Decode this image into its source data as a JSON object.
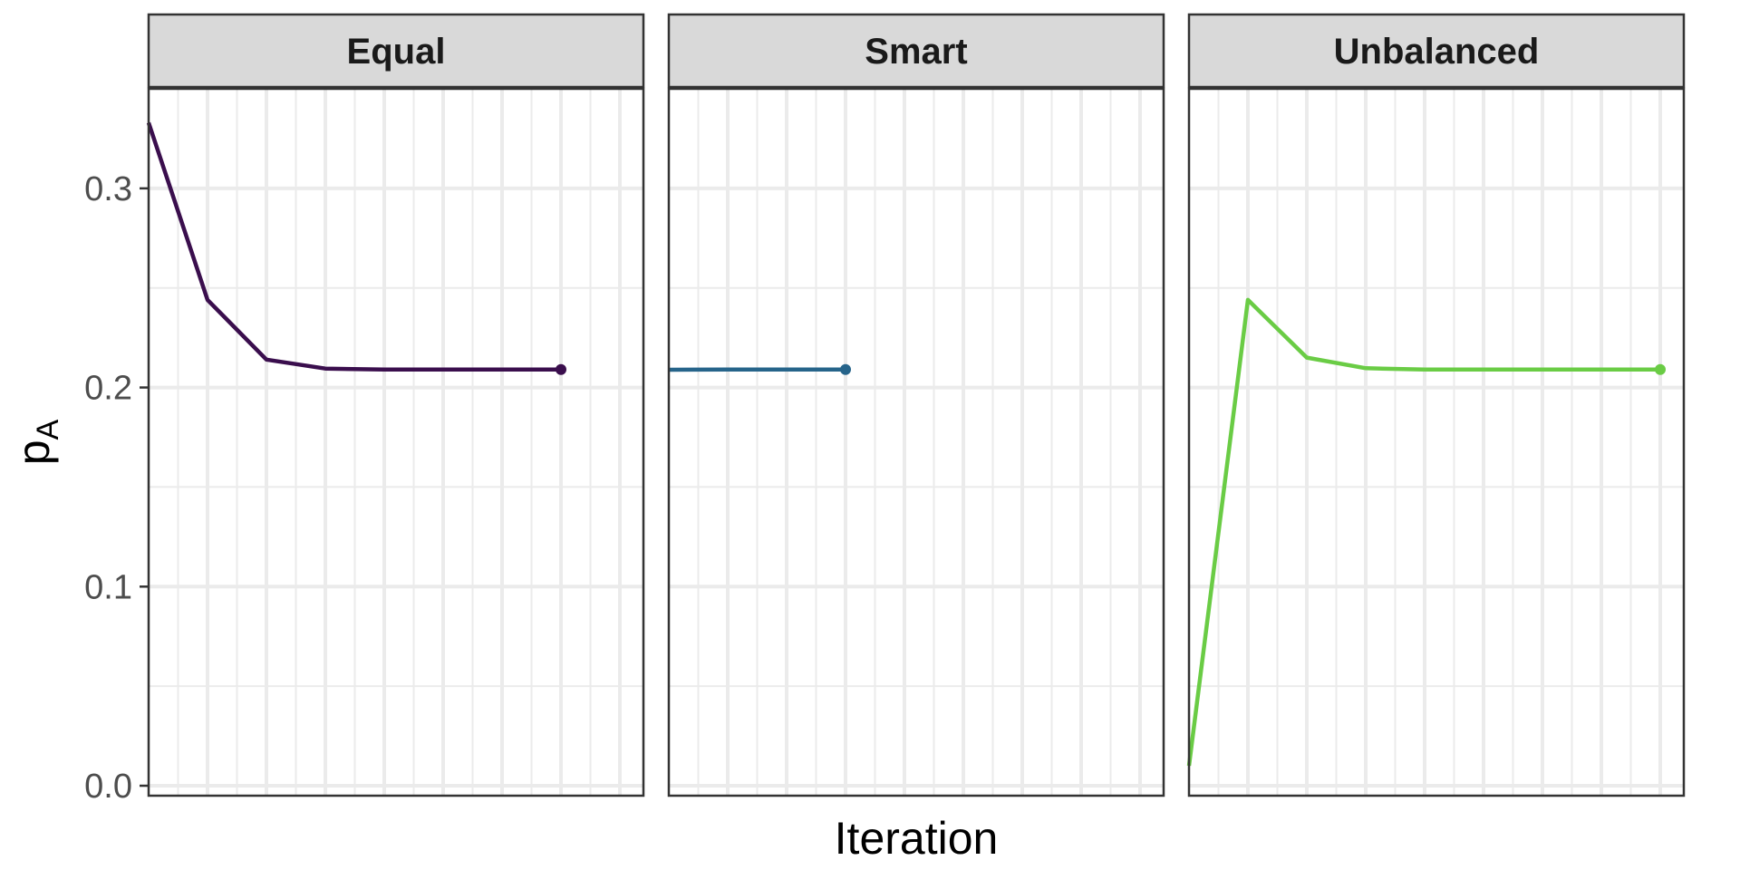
{
  "chart_data": {
    "type": "line",
    "facet": "panels",
    "xlabel": "Iteration",
    "ylabel": {
      "main": "p",
      "subscript": "A"
    },
    "ylim": [
      -0.005,
      0.35
    ],
    "yticks": [
      0.0,
      0.1,
      0.2,
      0.3
    ],
    "ytick_labels": [
      "0.0",
      "0.1",
      "0.2",
      "0.3"
    ],
    "xlim": [
      1,
      9.4
    ],
    "x_tick_labels_shown": false,
    "grid": true,
    "legend": "none",
    "panels": [
      {
        "strip": "Equal",
        "color": "#3a0e4d",
        "x": [
          1,
          2,
          3,
          4,
          5,
          6,
          7,
          8
        ],
        "y": [
          0.333,
          0.244,
          0.214,
          0.2095,
          0.209,
          0.209,
          0.209,
          0.209
        ],
        "end_marker": true
      },
      {
        "strip": "Smart",
        "color": "#26648a",
        "x": [
          1,
          2,
          3,
          4
        ],
        "y": [
          0.2089,
          0.209,
          0.209,
          0.209
        ],
        "end_marker": true
      },
      {
        "strip": "Unbalanced",
        "color": "#6acc45",
        "x": [
          1,
          2,
          3,
          4,
          5,
          6,
          7,
          8,
          9
        ],
        "y": [
          0.01,
          0.244,
          0.215,
          0.2097,
          0.209,
          0.209,
          0.209,
          0.209,
          0.209
        ],
        "end_marker": true
      }
    ]
  }
}
